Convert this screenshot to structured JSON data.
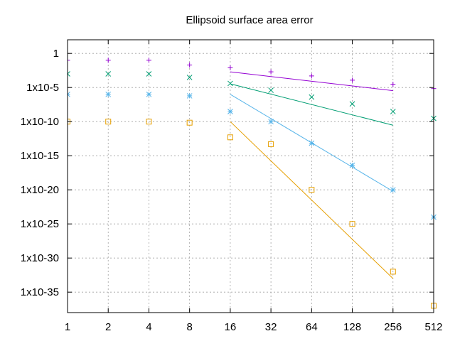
{
  "chart_data": {
    "type": "scatter",
    "title": "Ellipsoid surface area error",
    "xlabel": "",
    "ylabel": "",
    "x_scale": "log2",
    "y_scale": "log10",
    "xlim": [
      1,
      512
    ],
    "ylim": [
      1e-38,
      100.0
    ],
    "grid": true,
    "x_ticks": [
      1,
      2,
      4,
      8,
      16,
      32,
      64,
      128,
      256,
      512
    ],
    "x_tick_labels": [
      "1",
      "2",
      "4",
      "8",
      "16",
      "32",
      "64",
      "128",
      "256",
      "512"
    ],
    "y_ticks": [
      1,
      1e-05,
      1e-10,
      1e-15,
      1e-20,
      1e-25,
      1e-30,
      1e-35
    ],
    "y_tick_labels": [
      "1",
      "1x10-5",
      "1x10-10",
      "1x10-15",
      "1x10-20",
      "1x10-25",
      "1x10-30",
      "1x10-35"
    ],
    "series": [
      {
        "marker": "plus",
        "color": "#9400d3",
        "x": [
          1,
          2,
          4,
          8,
          16,
          32,
          64,
          128,
          256,
          512
        ],
        "y": [
          0.1,
          0.1,
          0.1,
          0.02,
          0.008,
          0.002,
          0.0005,
          0.00012,
          3e-05,
          7e-06
        ],
        "fit": {
          "x": [
            16,
            256
          ],
          "y": [
            0.002,
            3.5e-06
          ]
        }
      },
      {
        "marker": "cross",
        "color": "#009e73",
        "x": [
          1,
          2,
          4,
          8,
          16,
          32,
          64,
          128,
          256,
          512
        ],
        "y": [
          0.001,
          0.001,
          0.001,
          0.0003,
          4e-05,
          4e-06,
          4e-07,
          4e-08,
          3e-09,
          3e-10
        ],
        "fit": {
          "x": [
            16,
            256
          ],
          "y": [
            3.5e-05,
            3e-11
          ]
        }
      },
      {
        "marker": "star",
        "color": "#56b4e9",
        "x": [
          1,
          2,
          4,
          8,
          16,
          32,
          64,
          128,
          256,
          512
        ],
        "y": [
          1e-06,
          1e-06,
          1e-06,
          6e-07,
          3e-09,
          1e-10,
          7e-14,
          4e-17,
          1e-20,
          1e-24
        ],
        "fit": {
          "x": [
            16,
            256
          ],
          "y": [
            1e-06,
            6e-21
          ]
        }
      },
      {
        "marker": "square",
        "color": "#e69f00",
        "x": [
          1,
          2,
          4,
          8,
          16,
          32,
          64,
          128,
          256,
          512
        ],
        "y": [
          1e-10,
          1e-10,
          1e-10,
          7e-11,
          5e-13,
          5e-14,
          1e-20,
          1e-25,
          1e-32,
          1e-37
        ],
        "fit": {
          "x": [
            16,
            256
          ],
          "y": [
            1e-10,
            1e-33
          ]
        }
      }
    ]
  }
}
